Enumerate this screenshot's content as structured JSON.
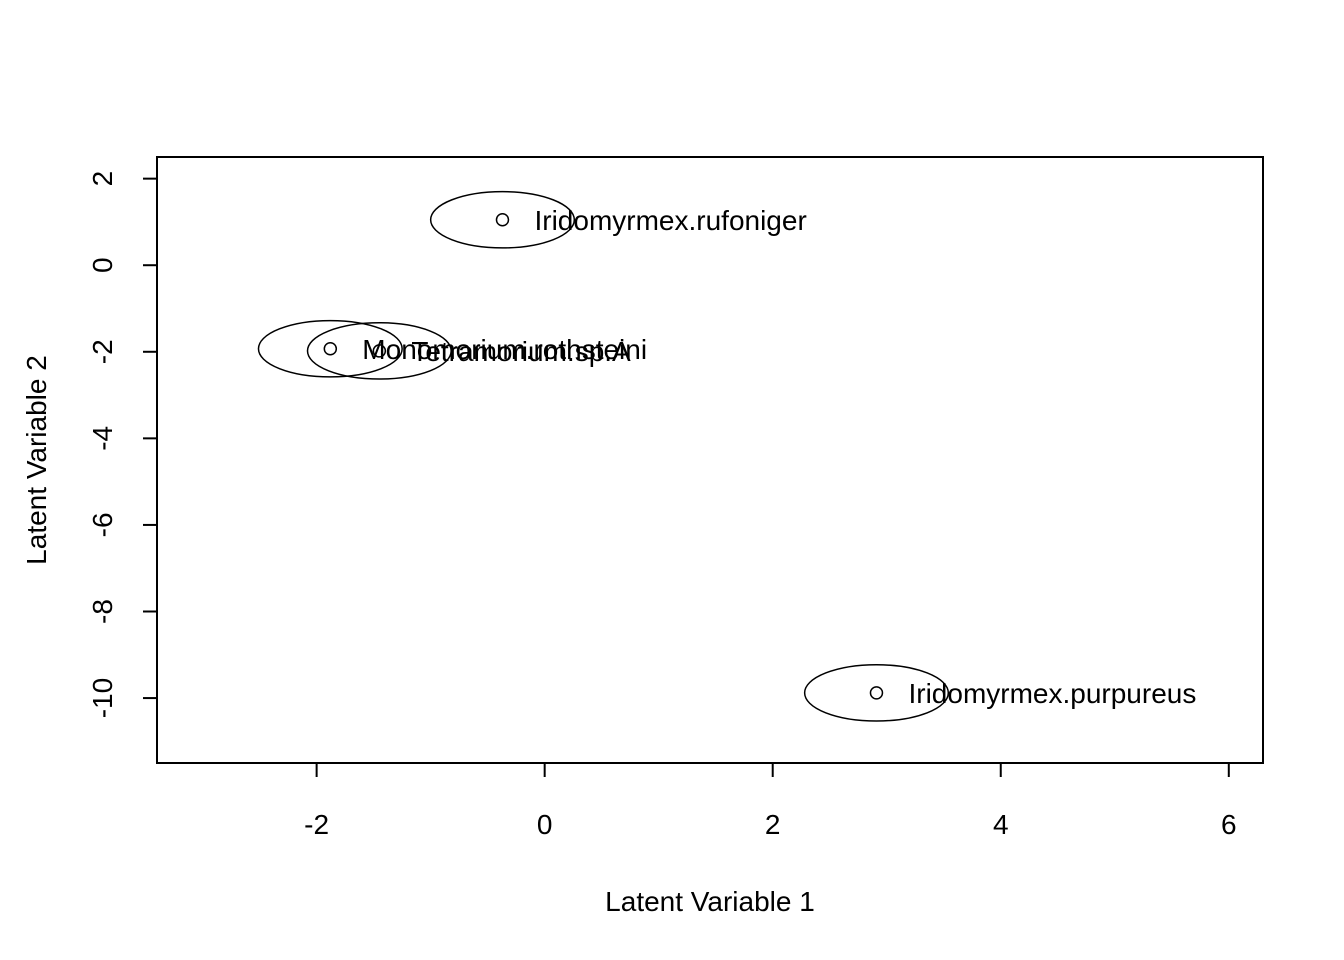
{
  "chart_data": {
    "type": "scatter",
    "title": "",
    "xlabel": "Latent Variable 1",
    "ylabel": "Latent Variable 2",
    "xlim": [
      -3.4,
      6.3
    ],
    "ylim": [
      -11.5,
      2.5
    ],
    "xticks": [
      -2,
      0,
      2,
      4,
      6
    ],
    "yticks": [
      2,
      0,
      -2,
      -4,
      -6,
      -8,
      -10
    ],
    "xtick_labels": [
      "-2",
      "0",
      "2",
      "4",
      "6"
    ],
    "ytick_labels": [
      "2",
      "0",
      "-2",
      "-4",
      "-6",
      "-8",
      "-10"
    ],
    "grid": false,
    "legend": "none",
    "points": [
      {
        "label": "Iridomyrmex.rufoniger",
        "x": -0.37,
        "y": 1.05,
        "ex": 0.63,
        "ey": 0.65
      },
      {
        "label": "Monomorium.rothsteini",
        "x": -1.88,
        "y": -1.93,
        "ex": 0.63,
        "ey": 0.65
      },
      {
        "label": "Tetramorium.sp.A",
        "x": -1.45,
        "y": -1.98,
        "ex": 0.63,
        "ey": 0.65
      },
      {
        "label": "Iridomyrmex.purpureus",
        "x": 2.91,
        "y": -9.88,
        "ex": 0.63,
        "ey": 0.65
      }
    ]
  }
}
